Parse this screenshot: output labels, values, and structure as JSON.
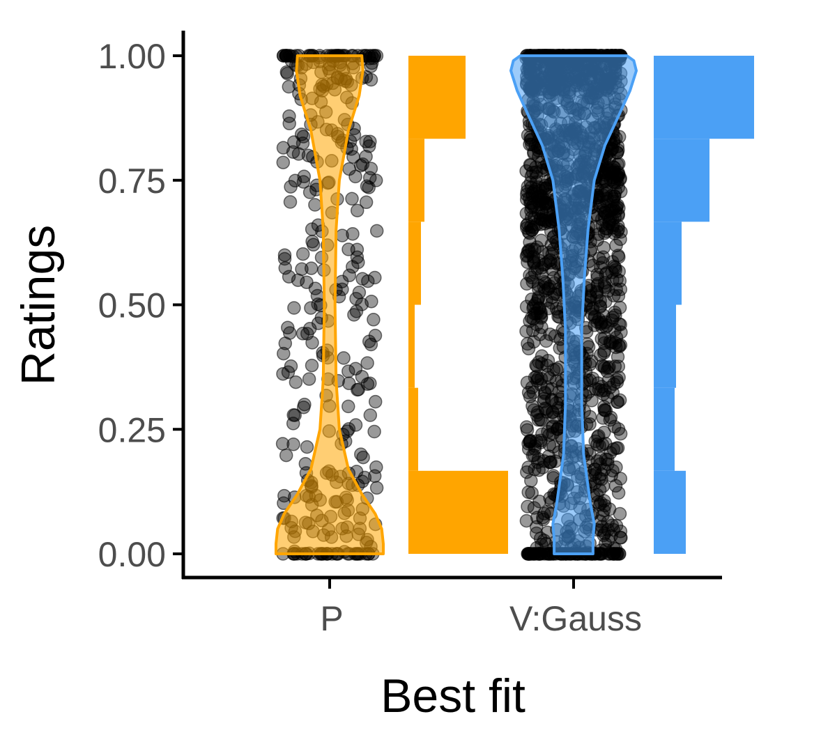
{
  "chart_data": {
    "type": "violin+scatter+histogram",
    "xlabel": "Best fit",
    "ylabel": "Ratings",
    "ylim": [
      0,
      1
    ],
    "yticks": [
      "0.00",
      "0.25",
      "0.50",
      "0.75",
      "1.00"
    ],
    "ytick_values": [
      0,
      0.25,
      0.5,
      0.75,
      1
    ],
    "categories": [
      "P",
      "V:Gauss"
    ],
    "bin_edges": [
      0,
      0.1667,
      0.3333,
      0.5,
      0.6667,
      0.8333,
      1.0
    ],
    "series": [
      {
        "name": "P",
        "color": "#FFA500",
        "histogram_relative_counts": [
          143,
          14,
          9,
          18,
          23,
          82
        ],
        "points_per_bin": [
          95,
          28,
          40,
          40,
          45,
          110
        ],
        "violin_profile": [
          [
            0,
            1
          ],
          [
            0.02,
            1
          ],
          [
            0.05,
            0.97
          ],
          [
            0.08,
            0.85
          ],
          [
            0.12,
            0.6
          ],
          [
            0.17,
            0.35
          ],
          [
            0.25,
            0.18
          ],
          [
            0.35,
            0.12
          ],
          [
            0.5,
            0.1
          ],
          [
            0.65,
            0.12
          ],
          [
            0.75,
            0.18
          ],
          [
            0.85,
            0.35
          ],
          [
            0.92,
            0.55
          ],
          [
            0.97,
            0.62
          ],
          [
            1,
            0.6
          ]
        ]
      },
      {
        "name": "V:Gauss",
        "color": "#4BA0F5",
        "histogram_relative_counts": [
          46,
          30,
          32,
          40,
          80,
          144
        ],
        "points_per_bin": [
          200,
          160,
          170,
          200,
          330,
          520
        ],
        "violin_profile": [
          [
            0,
            0.31
          ],
          [
            0.03,
            0.31
          ],
          [
            0.06,
            0.33
          ],
          [
            0.1,
            0.27
          ],
          [
            0.2,
            0.16
          ],
          [
            0.3,
            0.13
          ],
          [
            0.45,
            0.13
          ],
          [
            0.55,
            0.17
          ],
          [
            0.65,
            0.23
          ],
          [
            0.75,
            0.33
          ],
          [
            0.82,
            0.5
          ],
          [
            0.88,
            0.72
          ],
          [
            0.93,
            0.9
          ],
          [
            0.97,
            1
          ],
          [
            0.99,
            0.96
          ],
          [
            1,
            0.85
          ]
        ]
      }
    ],
    "grid": false,
    "legend": "none"
  }
}
